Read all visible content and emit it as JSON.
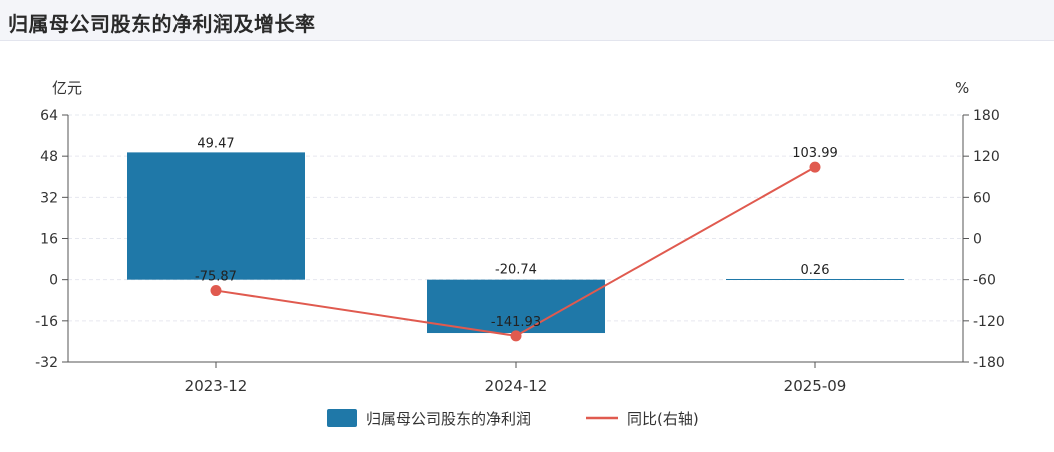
{
  "title": "归属母公司股东的净利润及增长率",
  "chart_data": {
    "type": "bar+line",
    "categories": [
      "2023-12",
      "2024-12",
      "2025-09"
    ],
    "series": [
      {
        "name": "归属母公司股东的净利润",
        "type": "bar",
        "axis": "left",
        "color": "#1f78a8",
        "values": [
          49.47,
          -20.74,
          0.26
        ],
        "labels": [
          "49.47",
          "-20.74",
          "0.26"
        ]
      },
      {
        "name": "同比(右轴)",
        "type": "line",
        "axis": "right",
        "color": "#e05a4f",
        "values": [
          -75.87,
          -141.93,
          103.99
        ],
        "labels": [
          "-75.87",
          "-141.93",
          "103.99"
        ]
      }
    ],
    "left_axis": {
      "unit": "亿元",
      "ylim": [
        -32,
        64
      ],
      "ticks": [
        64,
        48,
        32,
        16,
        0,
        -16,
        -32
      ],
      "tick_labels": [
        "64",
        "48",
        "32",
        "16",
        "0",
        "-16",
        "-32"
      ]
    },
    "right_axis": {
      "unit": "%",
      "ylim": [
        -180,
        180
      ],
      "ticks": [
        180,
        120,
        60,
        0,
        -60,
        -120,
        -180
      ],
      "tick_labels": [
        "180",
        "120",
        "60",
        "0",
        "-60",
        "-120",
        "-180"
      ]
    },
    "grid": "horizontal dashed",
    "legend_position": "bottom-center"
  }
}
